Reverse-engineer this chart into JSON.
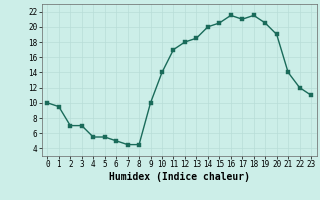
{
  "x": [
    0,
    1,
    2,
    3,
    4,
    5,
    6,
    7,
    8,
    9,
    10,
    11,
    12,
    13,
    14,
    15,
    16,
    17,
    18,
    19,
    20,
    21,
    22,
    23
  ],
  "y": [
    10,
    9.5,
    7,
    7,
    5.5,
    5.5,
    5,
    4.5,
    4.5,
    10,
    14,
    17,
    18,
    18.5,
    20,
    20.5,
    21.5,
    21,
    21.5,
    20.5,
    19,
    14,
    12,
    11
  ],
  "line_color": "#1a6b5a",
  "marker_color": "#1a6b5a",
  "bg_color": "#cceee8",
  "grid_color": "#b8ddd8",
  "xlabel": "Humidex (Indice chaleur)",
  "xlim_lo": -0.5,
  "xlim_hi": 23.5,
  "ylim_lo": 3,
  "ylim_hi": 23,
  "yticks": [
    4,
    6,
    8,
    10,
    12,
    14,
    16,
    18,
    20,
    22
  ],
  "xticks": [
    0,
    1,
    2,
    3,
    4,
    5,
    6,
    7,
    8,
    9,
    10,
    11,
    12,
    13,
    14,
    15,
    16,
    17,
    18,
    19,
    20,
    21,
    22,
    23
  ],
  "marker_size": 2.5,
  "line_width": 1.0,
  "xlabel_fontsize": 7,
  "tick_fontsize": 5.5
}
